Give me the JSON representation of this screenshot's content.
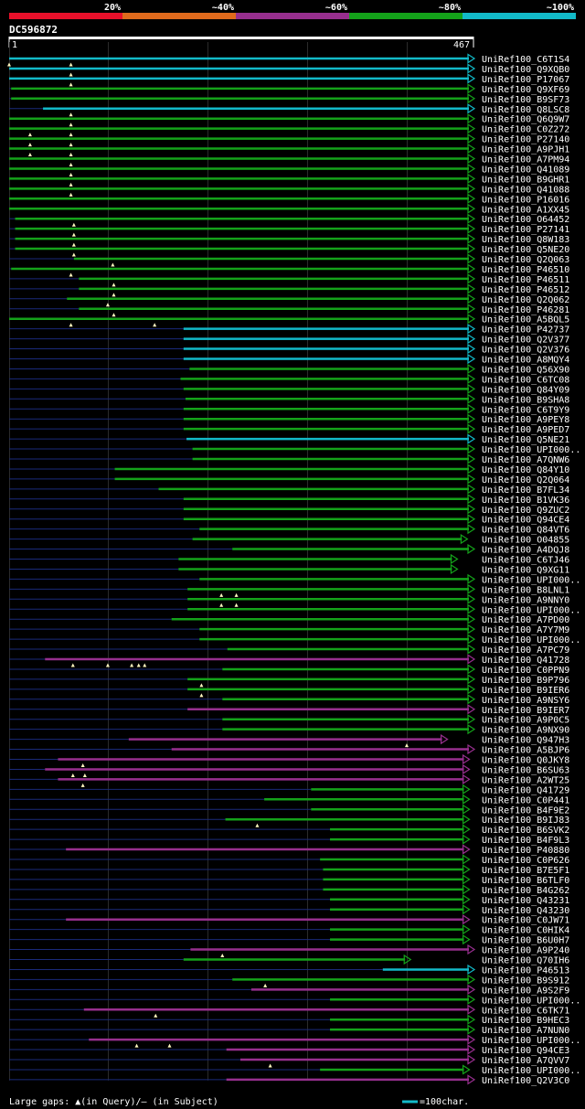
{
  "chart_data": {
    "type": "alignment",
    "query_id": "DC596872",
    "query_start": "1",
    "query_end": "467",
    "identity_scale": [
      {
        "label": "20%",
        "color": "#e8102a"
      },
      {
        "label": "~40%",
        "color": "#e06a1c"
      },
      {
        "label": "~60%",
        "color": "#972f8e"
      },
      {
        "label": "~80%",
        "color": "#14a21a"
      },
      {
        "label": "~100%",
        "color": "#12bac8"
      }
    ],
    "colors": {
      "c": "#12bac8",
      "g": "#14a21a",
      "m": "#972f8e",
      "bg": "#000000",
      "text": "#ffffff",
      "grid": "#2b2b2b",
      "thin": "#1a2a7a"
    },
    "legend": {
      "gaps_label": "Large gaps: ▲(in Query)/– (in Subject)",
      "scale_label": "=100char."
    },
    "hits": [
      {
        "id": "UniRef100_C6T1S4",
        "color": "c",
        "start": 1,
        "end": 467,
        "mark": [
          1,
          63
        ]
      },
      {
        "id": "UniRef100_Q9XQB0",
        "color": "c",
        "start": 1,
        "end": 467,
        "mark": [
          63
        ]
      },
      {
        "id": "UniRef100_P17067",
        "color": "c",
        "start": 1,
        "end": 467,
        "mark": [
          63
        ]
      },
      {
        "id": "UniRef100_Q9XF69",
        "color": "g",
        "start": 3,
        "end": 467,
        "mark": []
      },
      {
        "id": "UniRef100_B9SF73",
        "color": "g",
        "start": 3,
        "end": 467,
        "mark": []
      },
      {
        "id": "UniRef100_Q8LSC8",
        "color": "c",
        "start": 35,
        "end": 467,
        "mark": [
          63
        ]
      },
      {
        "id": "UniRef100_Q6Q9W7",
        "color": "g",
        "start": 1,
        "end": 467,
        "mark": [
          63
        ]
      },
      {
        "id": "UniRef100_C0Z272",
        "color": "g",
        "start": 1,
        "end": 467,
        "mark": [
          22,
          63
        ]
      },
      {
        "id": "UniRef100_P27140",
        "color": "g",
        "start": 1,
        "end": 467,
        "mark": [
          22,
          63
        ]
      },
      {
        "id": "UniRef100_A9PJH1",
        "color": "g",
        "start": 1,
        "end": 467,
        "mark": [
          22,
          63
        ]
      },
      {
        "id": "UniRef100_A7PM94",
        "color": "g",
        "start": 1,
        "end": 467,
        "mark": [
          63
        ]
      },
      {
        "id": "UniRef100_Q41089",
        "color": "g",
        "start": 1,
        "end": 467,
        "mark": [
          63
        ]
      },
      {
        "id": "UniRef100_B9GHR1",
        "color": "g",
        "start": 1,
        "end": 467,
        "mark": [
          63
        ]
      },
      {
        "id": "UniRef100_Q41088",
        "color": "g",
        "start": 1,
        "end": 467,
        "mark": [
          63
        ]
      },
      {
        "id": "UniRef100_P16016",
        "color": "g",
        "start": 1,
        "end": 467,
        "mark": []
      },
      {
        "id": "UniRef100_A1XX45",
        "color": "g",
        "start": 1,
        "end": 467,
        "mark": []
      },
      {
        "id": "UniRef100_O64452",
        "color": "g",
        "start": 7,
        "end": 467,
        "mark": [
          66
        ]
      },
      {
        "id": "UniRef100_P27141",
        "color": "g",
        "start": 7,
        "end": 467,
        "mark": [
          66
        ]
      },
      {
        "id": "UniRef100_Q8W183",
        "color": "g",
        "start": 7,
        "end": 467,
        "mark": [
          66
        ]
      },
      {
        "id": "UniRef100_Q5NE20",
        "color": "g",
        "start": 7,
        "end": 467,
        "mark": [
          66
        ]
      },
      {
        "id": "UniRef100_Q2Q063",
        "color": "g",
        "start": 66,
        "end": 467,
        "mark": [
          105
        ]
      },
      {
        "id": "UniRef100_P46510",
        "color": "g",
        "start": 3,
        "end": 467,
        "mark": [
          63
        ]
      },
      {
        "id": "UniRef100_P46511",
        "color": "g",
        "start": 71,
        "end": 467,
        "mark": [
          106
        ]
      },
      {
        "id": "UniRef100_P46512",
        "color": "g",
        "start": 71,
        "end": 467,
        "mark": [
          106
        ]
      },
      {
        "id": "UniRef100_Q2Q062",
        "color": "g",
        "start": 59,
        "end": 467,
        "mark": [
          100
        ]
      },
      {
        "id": "UniRef100_P46281",
        "color": "g",
        "start": 71,
        "end": 467,
        "mark": [
          106
        ]
      },
      {
        "id": "UniRef100_A5BQL5",
        "color": "g",
        "start": 1,
        "end": 467,
        "mark": [
          63,
          147
        ]
      },
      {
        "id": "UniRef100_P42737",
        "color": "c",
        "start": 176,
        "end": 467,
        "mark": []
      },
      {
        "id": "UniRef100_Q2V377",
        "color": "c",
        "start": 176,
        "end": 467,
        "mark": []
      },
      {
        "id": "UniRef100_Q2V376",
        "color": "c",
        "start": 176,
        "end": 467,
        "mark": []
      },
      {
        "id": "UniRef100_A8MQY4",
        "color": "c",
        "start": 176,
        "end": 467,
        "mark": []
      },
      {
        "id": "UniRef100_Q56X90",
        "color": "g",
        "start": 182,
        "end": 467,
        "mark": []
      },
      {
        "id": "UniRef100_C6TC08",
        "color": "g",
        "start": 173,
        "end": 467,
        "mark": []
      },
      {
        "id": "UniRef100_Q84Y09",
        "color": "g",
        "start": 176,
        "end": 467,
        "mark": []
      },
      {
        "id": "UniRef100_B9SHA8",
        "color": "g",
        "start": 178,
        "end": 467,
        "mark": []
      },
      {
        "id": "UniRef100_C6T9Y9",
        "color": "g",
        "start": 176,
        "end": 467,
        "mark": []
      },
      {
        "id": "UniRef100_A9PEY8",
        "color": "g",
        "start": 176,
        "end": 467,
        "mark": []
      },
      {
        "id": "UniRef100_A9PED7",
        "color": "g",
        "start": 176,
        "end": 467,
        "mark": []
      },
      {
        "id": "UniRef100_Q5NE21",
        "color": "c",
        "start": 179,
        "end": 467,
        "mark": []
      },
      {
        "id": "UniRef100_UPI000..",
        "color": "g",
        "start": 185,
        "end": 467,
        "mark": []
      },
      {
        "id": "UniRef100_A7QNW6",
        "color": "g",
        "start": 185,
        "end": 467,
        "mark": []
      },
      {
        "id": "UniRef100_Q84Y10",
        "color": "g",
        "start": 107,
        "end": 467,
        "mark": []
      },
      {
        "id": "UniRef100_Q2Q064",
        "color": "g",
        "start": 107,
        "end": 467,
        "mark": []
      },
      {
        "id": "UniRef100_B7FL34",
        "color": "g",
        "start": 151,
        "end": 467,
        "mark": []
      },
      {
        "id": "UniRef100_B1VK36",
        "color": "g",
        "start": 176,
        "end": 467,
        "mark": []
      },
      {
        "id": "UniRef100_Q9ZUC2",
        "color": "g",
        "start": 176,
        "end": 467,
        "mark": []
      },
      {
        "id": "UniRef100_Q94CE4",
        "color": "g",
        "start": 176,
        "end": 467,
        "mark": []
      },
      {
        "id": "UniRef100_Q84VT6",
        "color": "g",
        "start": 192,
        "end": 467,
        "mark": []
      },
      {
        "id": "UniRef100_O04855",
        "color": "g",
        "start": 185,
        "end": 460,
        "mark": []
      },
      {
        "id": "UniRef100_A4DQJ8",
        "color": "g",
        "start": 225,
        "end": 467,
        "mark": []
      },
      {
        "id": "UniRef100_C6TJ46",
        "color": "g",
        "start": 171,
        "end": 450,
        "mark": []
      },
      {
        "id": "UniRef100_Q9XG11",
        "color": "g",
        "start": 171,
        "end": 450,
        "mark": []
      },
      {
        "id": "UniRef100_UPI000..",
        "color": "g",
        "start": 192,
        "end": 467,
        "mark": []
      },
      {
        "id": "UniRef100_B8LNL1",
        "color": "g",
        "start": 180,
        "end": 467,
        "mark": [
          214,
          229
        ]
      },
      {
        "id": "UniRef100_A9NNY0",
        "color": "g",
        "start": 180,
        "end": 467,
        "mark": [
          214,
          229
        ]
      },
      {
        "id": "UniRef100_UPI000..",
        "color": "g",
        "start": 180,
        "end": 467,
        "mark": []
      },
      {
        "id": "UniRef100_A7PD00",
        "color": "g",
        "start": 164,
        "end": 467,
        "mark": []
      },
      {
        "id": "UniRef100_A7Y7M9",
        "color": "g",
        "start": 192,
        "end": 467,
        "mark": []
      },
      {
        "id": "UniRef100_UPI000..",
        "color": "g",
        "start": 192,
        "end": 467,
        "mark": []
      },
      {
        "id": "UniRef100_A7PC79",
        "color": "g",
        "start": 220,
        "end": 467,
        "mark": []
      },
      {
        "id": "UniRef100_Q41728",
        "color": "m",
        "start": 37,
        "end": 467,
        "mark": [
          65,
          100,
          124,
          131,
          137
        ]
      },
      {
        "id": "UniRef100_C0PPN9",
        "color": "g",
        "start": 215,
        "end": 467,
        "mark": []
      },
      {
        "id": "UniRef100_B9P796",
        "color": "g",
        "start": 180,
        "end": 467,
        "mark": [
          194
        ]
      },
      {
        "id": "UniRef100_B9IER6",
        "color": "g",
        "start": 180,
        "end": 467,
        "mark": [
          194
        ]
      },
      {
        "id": "UniRef100_A9NSY6",
        "color": "g",
        "start": 215,
        "end": 467,
        "mark": []
      },
      {
        "id": "UniRef100_B9IER7",
        "color": "m",
        "start": 180,
        "end": 467,
        "mark": []
      },
      {
        "id": "UniRef100_A9P0C5",
        "color": "g",
        "start": 215,
        "end": 467,
        "mark": []
      },
      {
        "id": "UniRef100_A9NX90",
        "color": "g",
        "start": 215,
        "end": 467,
        "mark": []
      },
      {
        "id": "UniRef100_Q947H3",
        "color": "m",
        "start": 121,
        "end": 440,
        "mark": [
          400
        ]
      },
      {
        "id": "UniRef100_A5BJP6",
        "color": "m",
        "start": 164,
        "end": 467,
        "mark": []
      },
      {
        "id": "UniRef100_Q0JKY8",
        "color": "m",
        "start": 50,
        "end": 462,
        "mark": [
          75
        ]
      },
      {
        "id": "UniRef100_B6SU63",
        "color": "m",
        "start": 37,
        "end": 462,
        "mark": [
          65,
          77
        ]
      },
      {
        "id": "UniRef100_A2WT25",
        "color": "m",
        "start": 50,
        "end": 462,
        "mark": [
          75
        ]
      },
      {
        "id": "UniRef100_Q41729",
        "color": "g",
        "start": 304,
        "end": 462,
        "mark": []
      },
      {
        "id": "UniRef100_C0P441",
        "color": "g",
        "start": 257,
        "end": 462,
        "mark": []
      },
      {
        "id": "UniRef100_B4F9E2",
        "color": "g",
        "start": 304,
        "end": 462,
        "mark": []
      },
      {
        "id": "UniRef100_B9IJ83",
        "color": "g",
        "start": 218,
        "end": 462,
        "mark": [
          250
        ]
      },
      {
        "id": "UniRef100_B6SVK2",
        "color": "g",
        "start": 323,
        "end": 462,
        "mark": []
      },
      {
        "id": "UniRef100_B4F9L3",
        "color": "g",
        "start": 323,
        "end": 462,
        "mark": []
      },
      {
        "id": "UniRef100_P40880",
        "color": "m",
        "start": 58,
        "end": 462,
        "mark": []
      },
      {
        "id": "UniRef100_C0P626",
        "color": "g",
        "start": 313,
        "end": 462,
        "mark": []
      },
      {
        "id": "UniRef100_B7E5F1",
        "color": "g",
        "start": 316,
        "end": 462,
        "mark": []
      },
      {
        "id": "UniRef100_B6TLF0",
        "color": "g",
        "start": 316,
        "end": 462,
        "mark": []
      },
      {
        "id": "UniRef100_B4G262",
        "color": "g",
        "start": 316,
        "end": 462,
        "mark": []
      },
      {
        "id": "UniRef100_Q43231",
        "color": "g",
        "start": 323,
        "end": 462,
        "mark": []
      },
      {
        "id": "UniRef100_Q43230",
        "color": "g",
        "start": 323,
        "end": 462,
        "mark": []
      },
      {
        "id": "UniRef100_C0JW71",
        "color": "m",
        "start": 58,
        "end": 462,
        "mark": []
      },
      {
        "id": "UniRef100_C0HIK4",
        "color": "g",
        "start": 323,
        "end": 462,
        "mark": []
      },
      {
        "id": "UniRef100_B6U0H7",
        "color": "g",
        "start": 323,
        "end": 462,
        "mark": []
      },
      {
        "id": "UniRef100_A9P240",
        "color": "m",
        "start": 183,
        "end": 467,
        "mark": [
          215
        ]
      },
      {
        "id": "UniRef100_Q70IH6",
        "color": "g",
        "start": 176,
        "end": 403,
        "mark": []
      },
      {
        "id": "UniRef100_P46513",
        "color": "c",
        "start": 376,
        "end": 467,
        "mark": []
      },
      {
        "id": "UniRef100_B9S912",
        "color": "g",
        "start": 225,
        "end": 467,
        "mark": [
          258
        ]
      },
      {
        "id": "UniRef100_A9S2F9",
        "color": "m",
        "start": 244,
        "end": 467,
        "mark": []
      },
      {
        "id": "UniRef100_UPI000..",
        "color": "g",
        "start": 323,
        "end": 467,
        "mark": []
      },
      {
        "id": "UniRef100_C6TK71",
        "color": "m",
        "start": 76,
        "end": 467,
        "mark": [
          148
        ]
      },
      {
        "id": "UniRef100_B9HEC3",
        "color": "g",
        "start": 323,
        "end": 467,
        "mark": []
      },
      {
        "id": "UniRef100_A7NUN0",
        "color": "g",
        "start": 323,
        "end": 467,
        "mark": []
      },
      {
        "id": "UniRef100_UPI000..",
        "color": "m",
        "start": 81,
        "end": 467,
        "mark": [
          129,
          162
        ]
      },
      {
        "id": "UniRef100_Q94CE3",
        "color": "m",
        "start": 219,
        "end": 467,
        "mark": []
      },
      {
        "id": "UniRef100_A7QVV7",
        "color": "m",
        "start": 233,
        "end": 467,
        "mark": [
          263
        ]
      },
      {
        "id": "UniRef100_UPI000..",
        "color": "g",
        "start": 313,
        "end": 462,
        "mark": []
      },
      {
        "id": "UniRef100_Q2V3C0",
        "color": "m",
        "start": 219,
        "end": 467,
        "mark": []
      }
    ]
  }
}
